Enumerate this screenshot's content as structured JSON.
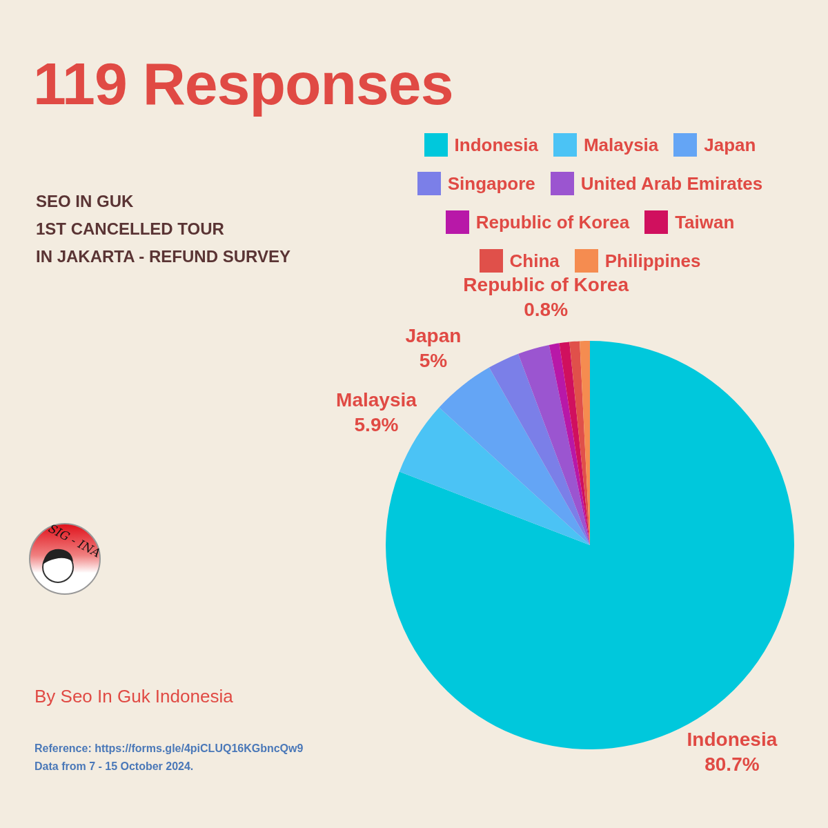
{
  "chart_data": {
    "type": "pie",
    "title": "119 Responses",
    "subtitle": [
      "SEO IN GUK",
      "1ST CANCELLED TOUR",
      "IN JAKARTA - REFUND SURVEY"
    ],
    "categories": [
      "Indonesia",
      "Malaysia",
      "Japan",
      "Singapore",
      "United Arab Emirates",
      "Republic of Korea",
      "Taiwan",
      "China",
      "Philippines"
    ],
    "values": [
      80.7,
      5.9,
      5,
      2.5,
      2.5,
      0.8,
      0.8,
      0.8,
      0.8
    ],
    "colors": [
      "#00c8dc",
      "#4bc3f5",
      "#64a5f5",
      "#7b7fe8",
      "#9b55d0",
      "#b818a8",
      "#d0105e",
      "#e0504a",
      "#f58c50"
    ],
    "data_labels": true,
    "value_labels": [
      "80.7%",
      "5.9%",
      "5%",
      null,
      null,
      "0.8%",
      null,
      null,
      null
    ],
    "legend": "top-right"
  },
  "byline": "By Seo In Guk Indonesia",
  "logo_text": "SIG - INA",
  "source": [
    "Reference: https://forms.gle/4piCLUQ16KGbncQw9",
    "Data from 7 - 15 October 2024."
  ]
}
